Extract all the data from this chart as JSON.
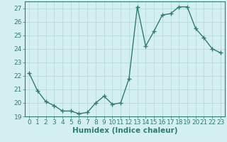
{
  "x": [
    0,
    1,
    2,
    3,
    4,
    5,
    6,
    7,
    8,
    9,
    10,
    11,
    12,
    13,
    14,
    15,
    16,
    17,
    18,
    19,
    20,
    21,
    22,
    23
  ],
  "y": [
    22.2,
    20.9,
    20.1,
    19.8,
    19.4,
    19.4,
    19.2,
    19.3,
    20.0,
    20.5,
    19.9,
    20.0,
    21.8,
    27.1,
    24.2,
    25.3,
    26.5,
    26.6,
    27.1,
    27.1,
    25.5,
    24.8,
    24.0,
    23.7
  ],
  "line_color": "#2e7d6e",
  "marker": "+",
  "markersize": 5,
  "linewidth": 1.0,
  "background_color": "#d4efef",
  "grid_color": "#b8dada",
  "xlabel": "Humidex (Indice chaleur)",
  "ylabel": "",
  "ylim": [
    19,
    27.5
  ],
  "yticks": [
    19,
    20,
    21,
    22,
    23,
    24,
    25,
    26,
    27
  ],
  "xticks": [
    0,
    1,
    2,
    3,
    4,
    5,
    6,
    7,
    8,
    9,
    10,
    11,
    12,
    13,
    14,
    15,
    16,
    17,
    18,
    19,
    20,
    21,
    22,
    23
  ],
  "xlabel_fontsize": 7.5,
  "tick_fontsize": 6.5,
  "spine_color": "#2e7d6e",
  "tick_color": "#2e7d6e"
}
